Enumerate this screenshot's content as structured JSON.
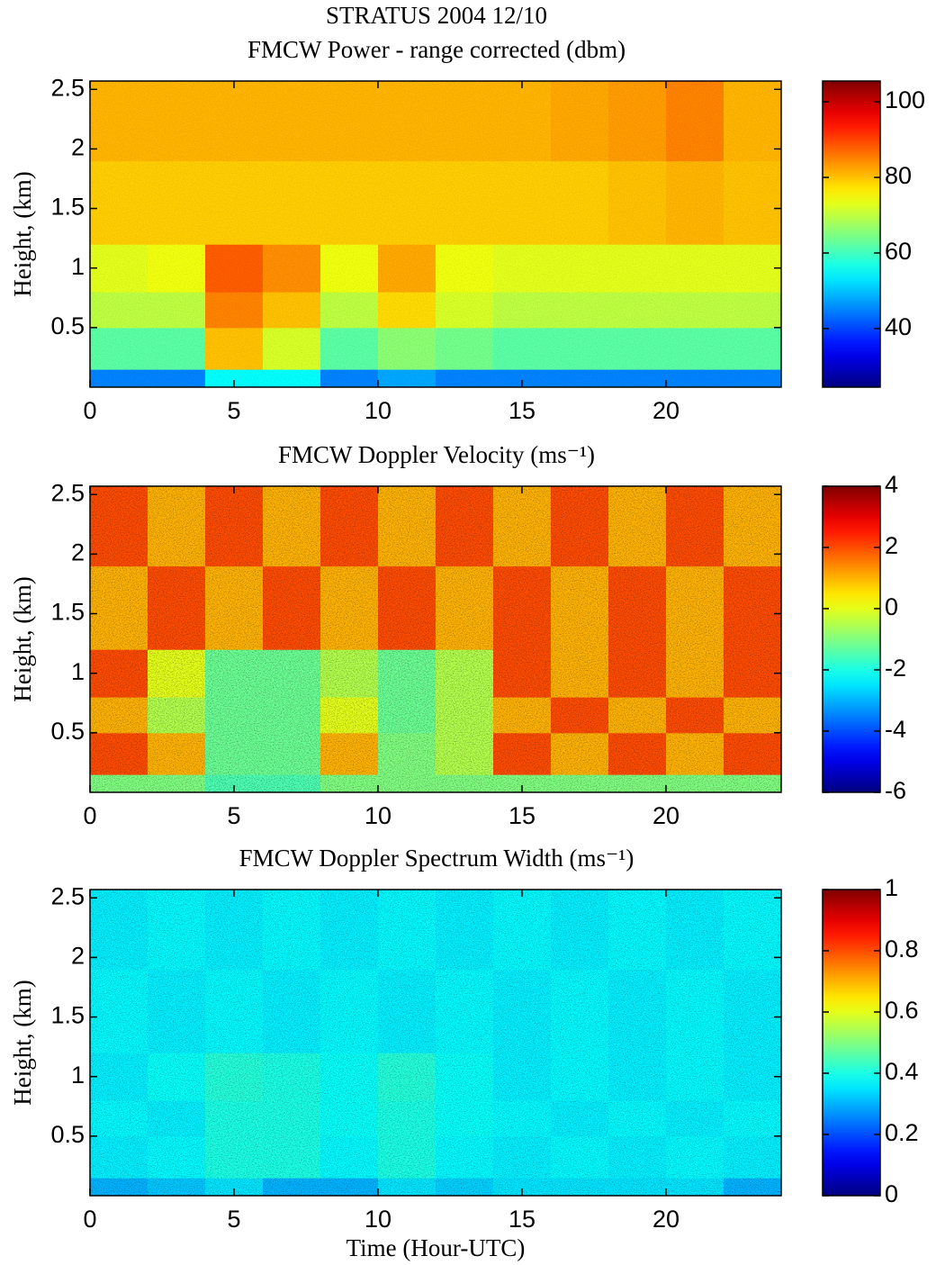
{
  "chart_data": [
    {
      "type": "heatmap",
      "suptitle": "STRATUS 2004  12/10",
      "title": "FMCW Power - range corrected (dbm)",
      "ylabel": "Height, (km)",
      "xbins": [
        0,
        2,
        4,
        6,
        8,
        10,
        12,
        14,
        16,
        18,
        20,
        22,
        24
      ],
      "ybins": [
        0,
        0.15,
        0.5,
        0.8,
        1.2,
        1.9,
        2.57
      ],
      "values": [
        [
          45,
          45,
          55,
          55,
          45,
          48,
          45,
          45,
          45,
          45,
          45,
          45
        ],
        [
          62,
          62,
          80,
          72,
          62,
          66,
          64,
          62,
          62,
          62,
          62,
          62
        ],
        [
          70,
          70,
          85,
          80,
          70,
          78,
          72,
          70,
          70,
          70,
          70,
          70
        ],
        [
          73,
          74,
          88,
          84,
          74,
          82,
          74,
          73,
          73,
          73,
          73,
          73
        ],
        [
          79,
          79,
          79,
          79,
          79,
          79,
          79,
          79,
          79,
          80,
          81,
          80
        ],
        [
          81,
          81,
          81,
          81,
          81,
          81,
          81,
          81,
          82,
          83,
          85,
          81
        ]
      ],
      "xlim": [
        0,
        24
      ],
      "xticks": [
        0,
        5,
        10,
        15,
        20
      ],
      "ylim": [
        0,
        2.57
      ],
      "yticks": [
        0.5,
        1,
        1.5,
        2,
        2.5
      ],
      "clim": [
        24.5,
        105.5
      ],
      "cticks": [
        40,
        60,
        80,
        100
      ],
      "colormap": "jet"
    },
    {
      "type": "heatmap",
      "title": "FMCW Doppler Velocity (ms⁻¹)",
      "ylabel": "Height, (km)",
      "xbins": [
        0,
        2,
        4,
        6,
        8,
        10,
        12,
        14,
        16,
        18,
        20,
        22,
        24
      ],
      "ybins": [
        0,
        0.15,
        0.5,
        0.8,
        1.2,
        1.9,
        2.57
      ],
      "values": [
        [
          -1,
          -1,
          -1.5,
          -1.5,
          -1,
          -1,
          -1,
          -1,
          -1,
          -1,
          -1,
          -1
        ],
        [
          2,
          1,
          -1.2,
          -1.2,
          1,
          -1,
          -0.5,
          2,
          1,
          2,
          1,
          2
        ],
        [
          1,
          -0.5,
          -1.2,
          -1.2,
          0,
          -1.2,
          -0.5,
          1,
          2,
          1,
          2,
          1
        ],
        [
          2,
          0,
          -1.2,
          -1.2,
          -0.5,
          -1.2,
          -0.5,
          2,
          1,
          2,
          1,
          2
        ],
        [
          1,
          2,
          1,
          2,
          1,
          2,
          1,
          2,
          1,
          2,
          1,
          2
        ],
        [
          2,
          1,
          2,
          1,
          2,
          1,
          2,
          1,
          2,
          1,
          2,
          1
        ]
      ],
      "xlim": [
        0,
        24
      ],
      "xticks": [
        0,
        5,
        10,
        15,
        20
      ],
      "ylim": [
        0,
        2.57
      ],
      "yticks": [
        0.5,
        1,
        1.5,
        2,
        2.5
      ],
      "clim": [
        -6,
        4
      ],
      "cticks": [
        -6,
        -4,
        -2,
        0,
        2,
        4
      ],
      "colormap": "jet"
    },
    {
      "type": "heatmap",
      "title": "FMCW Doppler Spectrum Width (ms⁻¹)",
      "ylabel": "Height, (km)",
      "xlabel": "Time (Hour-UTC)",
      "xbins": [
        0,
        2,
        4,
        6,
        8,
        10,
        12,
        14,
        16,
        18,
        20,
        22,
        24
      ],
      "ybins": [
        0,
        0.15,
        0.5,
        0.8,
        1.2,
        1.9,
        2.57
      ],
      "values": [
        [
          0.3,
          0.32,
          0.35,
          0.3,
          0.3,
          0.35,
          0.33,
          0.35,
          0.35,
          0.35,
          0.35,
          0.3
        ],
        [
          0.36,
          0.37,
          0.4,
          0.4,
          0.37,
          0.4,
          0.37,
          0.36,
          0.37,
          0.36,
          0.37,
          0.36
        ],
        [
          0.37,
          0.36,
          0.4,
          0.4,
          0.38,
          0.4,
          0.38,
          0.37,
          0.36,
          0.37,
          0.36,
          0.37
        ],
        [
          0.36,
          0.38,
          0.41,
          0.4,
          0.38,
          0.41,
          0.38,
          0.36,
          0.37,
          0.36,
          0.37,
          0.36
        ],
        [
          0.37,
          0.36,
          0.37,
          0.36,
          0.37,
          0.36,
          0.37,
          0.36,
          0.37,
          0.36,
          0.37,
          0.36
        ],
        [
          0.36,
          0.37,
          0.36,
          0.37,
          0.36,
          0.37,
          0.36,
          0.37,
          0.36,
          0.37,
          0.36,
          0.37
        ]
      ],
      "xlim": [
        0,
        24
      ],
      "xticks": [
        0,
        5,
        10,
        15,
        20
      ],
      "ylim": [
        0,
        2.57
      ],
      "yticks": [
        0.5,
        1,
        1.5,
        2,
        2.5
      ],
      "clim": [
        0,
        1
      ],
      "cticks": [
        0,
        0.2,
        0.4,
        0.6,
        0.8,
        1
      ],
      "colormap": "jet"
    }
  ]
}
